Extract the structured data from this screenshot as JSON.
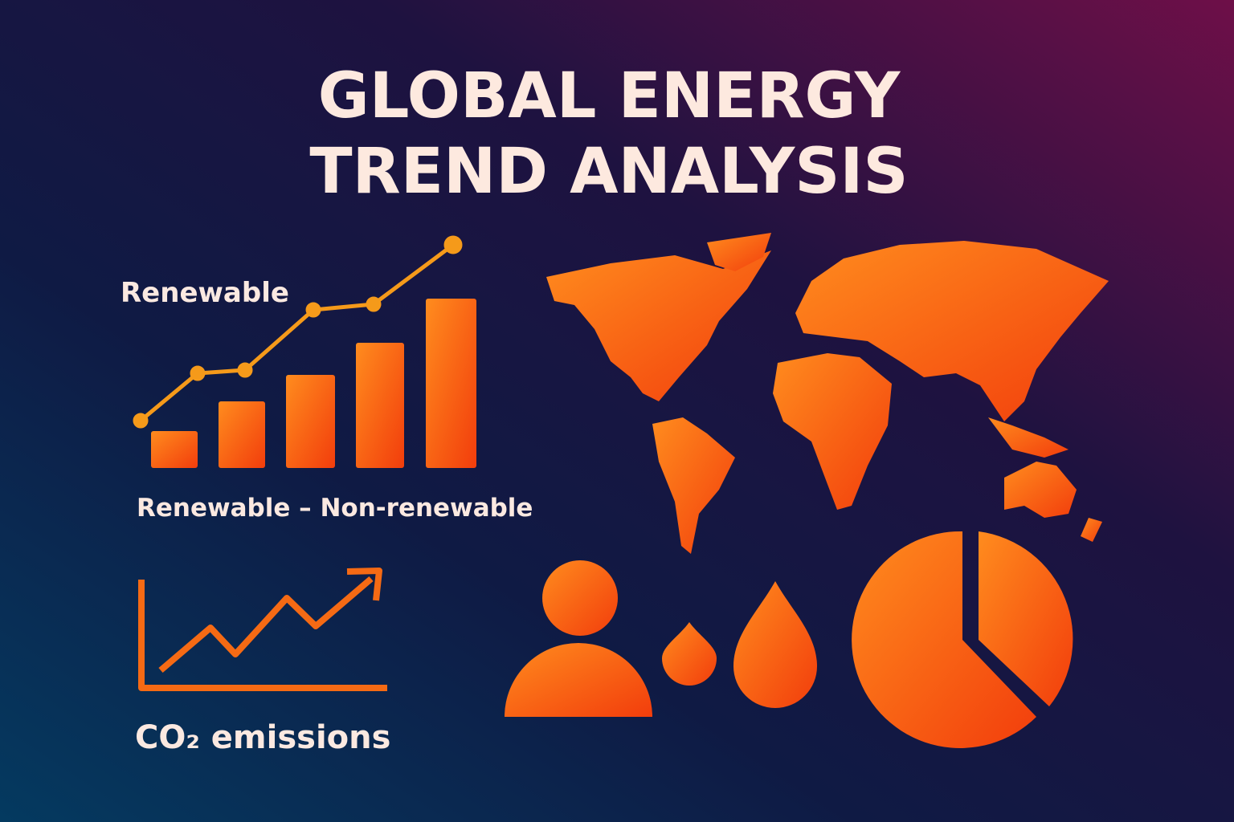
{
  "header": {
    "title_line_1": "GLOBAL ENERGY",
    "title_line_2": "TREND ANALYSIS"
  },
  "left_panel": {
    "bar_chart_label": "Renewable",
    "bar_chart_caption": "Renewable – Non-renewable",
    "emissions_caption": "CO₂ emissions"
  }
}
